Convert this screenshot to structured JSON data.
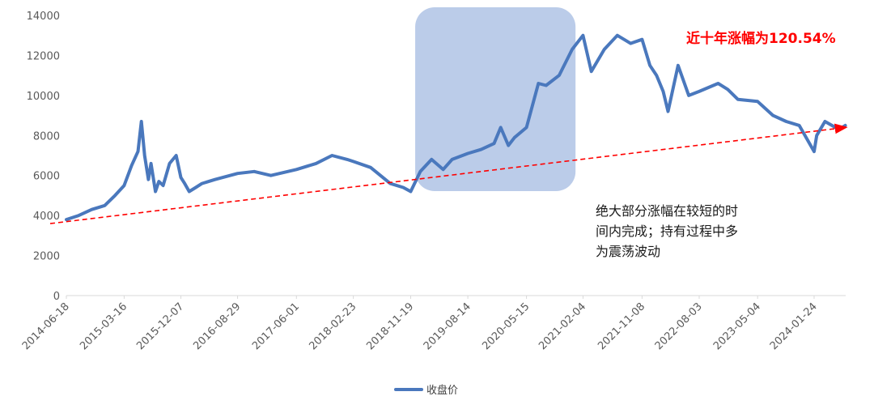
{
  "chart_data": {
    "type": "line",
    "title": "",
    "xlabel": "",
    "ylabel": "",
    "ylim": [
      0,
      14000
    ],
    "yticks": [
      0,
      2000,
      4000,
      6000,
      8000,
      10000,
      12000,
      14000
    ],
    "xticks": [
      "2014-06-18",
      "2015-03-16",
      "2015-12-07",
      "2016-08-29",
      "2017-06-01",
      "2018-02-23",
      "2018-11-19",
      "2019-08-14",
      "2020-05-15",
      "2021-02-04",
      "2021-11-08",
      "2022-08-03",
      "2023-05-04",
      "2024-01-24"
    ],
    "grid": false,
    "legend_position": "bottom",
    "series": [
      {
        "name": "收盘价",
        "color": "#4a78bd",
        "x": [
          "2014-06-18",
          "2014-08-15",
          "2014-10-15",
          "2014-12-15",
          "2015-02-01",
          "2015-03-16",
          "2015-04-20",
          "2015-05-20",
          "2015-06-05",
          "2015-06-20",
          "2015-07-08",
          "2015-07-20",
          "2015-08-10",
          "2015-08-26",
          "2015-09-15",
          "2015-10-15",
          "2015-11-15",
          "2015-12-07",
          "2015-12-25",
          "2016-01-15",
          "2016-02-15",
          "2016-03-15",
          "2016-05-15",
          "2016-08-29",
          "2016-11-15",
          "2017-02-01",
          "2017-06-01",
          "2017-09-01",
          "2017-11-15",
          "2018-01-25",
          "2018-02-23",
          "2018-05-15",
          "2018-08-15",
          "2018-10-15",
          "2018-11-19",
          "2019-01-03",
          "2019-02-25",
          "2019-04-20",
          "2019-06-01",
          "2019-08-14",
          "2019-10-15",
          "2019-12-15",
          "2020-01-15",
          "2020-02-20",
          "2020-03-20",
          "2020-05-15",
          "2020-07-10",
          "2020-08-15",
          "2020-10-15",
          "2020-12-15",
          "2021-02-04",
          "2021-03-15",
          "2021-05-15",
          "2021-07-15",
          "2021-09-15",
          "2021-11-08",
          "2021-12-15",
          "2022-01-15",
          "2022-02-15",
          "2022-03-10",
          "2022-04-26",
          "2022-06-15",
          "2022-08-03",
          "2022-10-31",
          "2022-12-15",
          "2023-02-01",
          "2023-05-04",
          "2023-07-15",
          "2023-09-15",
          "2023-11-15",
          "2024-01-24",
          "2024-02-05",
          "2024-03-15",
          "2024-05-20",
          "2024-06-18"
        ],
        "values": [
          3800,
          4000,
          4300,
          4500,
          5000,
          5500,
          6500,
          7200,
          8700,
          7000,
          5800,
          6600,
          5200,
          5700,
          5500,
          6600,
          7000,
          5900,
          5600,
          5200,
          5400,
          5600,
          5800,
          6100,
          6200,
          6000,
          6300,
          6600,
          7000,
          6800,
          6700,
          6400,
          5600,
          5400,
          5200,
          6200,
          6800,
          6300,
          6800,
          7100,
          7300,
          7600,
          8400,
          7500,
          7900,
          8400,
          10600,
          10500,
          11000,
          12300,
          13000,
          11200,
          12300,
          13000,
          12600,
          12800,
          11500,
          11000,
          10200,
          9200,
          11500,
          10000,
          10200,
          10600,
          10300,
          9800,
          9700,
          9000,
          8700,
          8500,
          7200,
          8000,
          8700,
          8300,
          8500
        ]
      }
    ],
    "trendline": {
      "from": [
        "2014-06-18",
        3800
      ],
      "to": [
        "2024-06-18",
        8400
      ],
      "color": "#ff0000",
      "style": "dashed"
    },
    "highlight_box": {
      "from": "2018-12-10",
      "to": "2020-12-31",
      "color": "#b4c7e7"
    },
    "annotations": {
      "growth": "近十年涨幅为120.54%",
      "note_lines": [
        "绝大部分涨幅在较短的时",
        "间内完成；持有过程中多",
        "为震荡波动"
      ]
    }
  }
}
